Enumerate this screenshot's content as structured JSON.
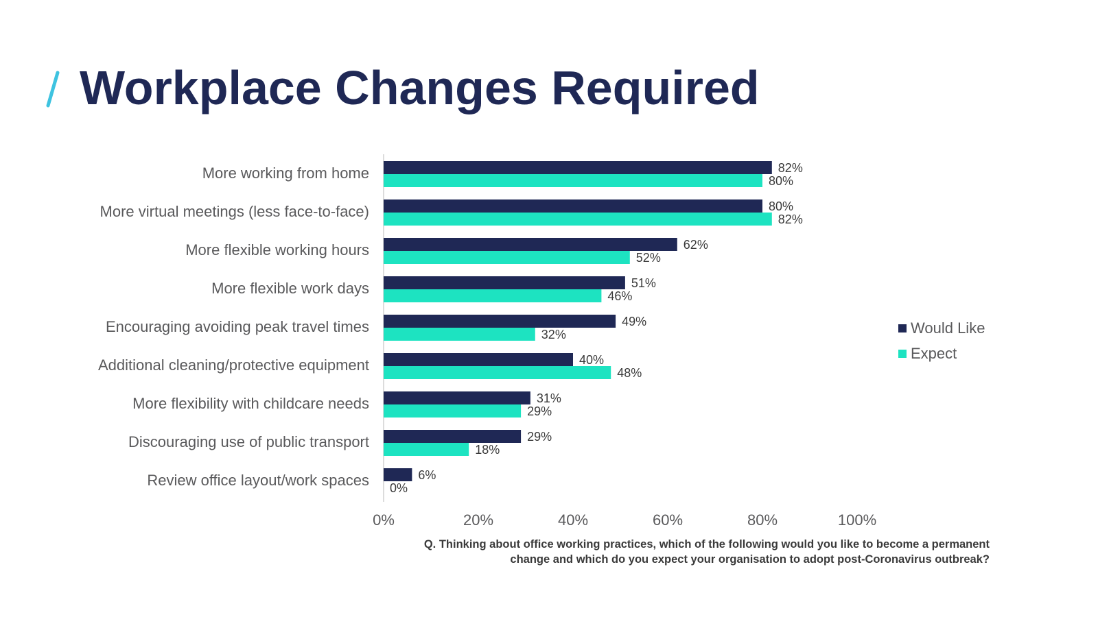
{
  "title": "Workplace Changes Required",
  "colors": {
    "title": "#1f2855",
    "accent_slash": "#3ec3e0",
    "would_like": "#1f2855",
    "expect": "#1de3c1",
    "label_text": "#59595b",
    "axis": "#d0d0d0"
  },
  "chart_data": {
    "type": "bar",
    "orientation": "horizontal",
    "categories": [
      "More working from home",
      "More virtual meetings (less face-to-face)",
      "More flexible working hours",
      "More flexible work days",
      "Encouraging avoiding peak travel times",
      "Additional cleaning/protective equipment",
      "More flexibility with childcare needs",
      "Discouraging use of public transport",
      "Review office layout/work spaces"
    ],
    "series": [
      {
        "name": "Would Like",
        "color": "#1f2855",
        "values": [
          82,
          80,
          62,
          51,
          49,
          40,
          31,
          29,
          6
        ],
        "labels": [
          "82%",
          "80%",
          "62%",
          "51%",
          "49%",
          "40%",
          "31%",
          "29%",
          "6%"
        ]
      },
      {
        "name": "Expect",
        "color": "#1de3c1",
        "values": [
          80,
          82,
          52,
          46,
          32,
          48,
          29,
          18,
          0
        ],
        "labels": [
          "80%",
          "82%",
          "52%",
          "46%",
          "32%",
          "48%",
          "29%",
          "18%",
          "0%"
        ]
      }
    ],
    "xlim": [
      0,
      100
    ],
    "xticks": [
      0,
      20,
      40,
      60,
      80,
      100
    ],
    "xtick_labels": [
      "0%",
      "20%",
      "40%",
      "60%",
      "80%",
      "100%"
    ],
    "grid": false,
    "legend_position": "right"
  },
  "legend": {
    "items": [
      {
        "label": "Would Like",
        "color": "#1f2855"
      },
      {
        "label": "Expect",
        "color": "#1de3c1"
      }
    ]
  },
  "question": {
    "line1": "Q. Thinking about office working practices, which of the following would you like to become a permanent",
    "line2": "change and which do you expect your organisation to adopt post-Coronavirus outbreak?"
  }
}
